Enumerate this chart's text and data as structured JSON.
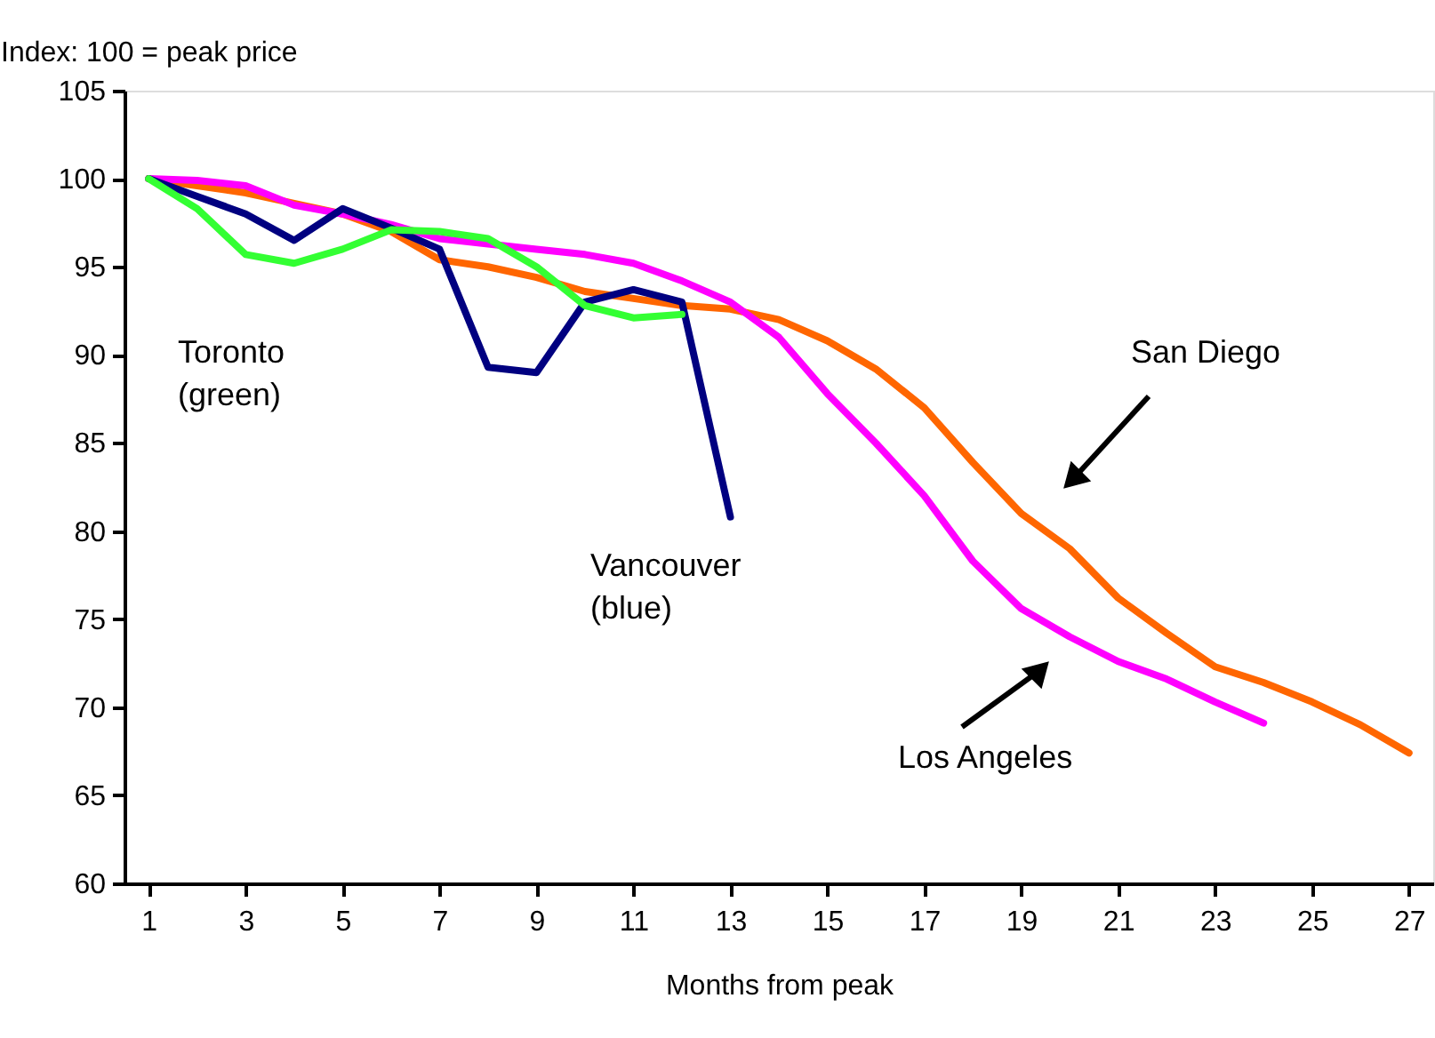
{
  "chart_data": {
    "type": "line",
    "ylabel": "Index: 100 = peak price",
    "xlabel": "Months from peak",
    "x": [
      1,
      2,
      3,
      4,
      5,
      6,
      7,
      8,
      9,
      10,
      11,
      12,
      13,
      14,
      15,
      16,
      17,
      18,
      19,
      20,
      21,
      22,
      23,
      24,
      25,
      26,
      27
    ],
    "series": [
      {
        "color": "#ff6600",
        "values": [
          100,
          99.6,
          99.2,
          98.6,
          98,
          97,
          95.4,
          95,
          94.4,
          93.6,
          93.2,
          92.8,
          92.6,
          92,
          90.8,
          89.2,
          87,
          83.9,
          81,
          79,
          76.2,
          74.2,
          72.3,
          71.4,
          70.3,
          69,
          67.4
        ]
      },
      {
        "color": "#ff00ff",
        "values": [
          100,
          99.9,
          99.6,
          98.5,
          98,
          97.4,
          96.6,
          96.3,
          96,
          95.7,
          95.2,
          94.2,
          93,
          91,
          87.8,
          85,
          82,
          78.3,
          75.6,
          74,
          72.6,
          71.6,
          70.3,
          69.1,
          null,
          null,
          null
        ]
      },
      {
        "color": "#000080",
        "values": [
          100,
          99,
          98,
          96.5,
          98.3,
          97.2,
          96,
          89.3,
          89,
          93,
          93.7,
          93,
          80.8,
          null,
          null,
          null,
          null,
          null,
          null,
          null,
          null,
          null,
          null,
          null,
          null,
          null,
          null
        ]
      },
      {
        "color": "#33ff33",
        "values": [
          100,
          98.3,
          95.7,
          95.2,
          96,
          97.1,
          97,
          96.6,
          95,
          92.8,
          92.1,
          92.3,
          null,
          null,
          null,
          null,
          null,
          null,
          null,
          null,
          null,
          null,
          null,
          null,
          null,
          null,
          null
        ]
      }
    ],
    "xlim": [
      0.5,
      27.5
    ],
    "xticks": [
      1,
      3,
      5,
      7,
      9,
      11,
      13,
      15,
      17,
      19,
      21,
      23,
      25,
      27
    ],
    "ylim": [
      60,
      105
    ],
    "yticks": [
      60,
      65,
      70,
      75,
      80,
      85,
      90,
      95,
      100,
      105
    ],
    "grid": false,
    "legend": false,
    "marker": "none",
    "line_style": "solid",
    "annotations": [
      "Toronto\n(green)",
      "Vancouver\n(blue)",
      "San Diego",
      "Los Angeles"
    ]
  }
}
